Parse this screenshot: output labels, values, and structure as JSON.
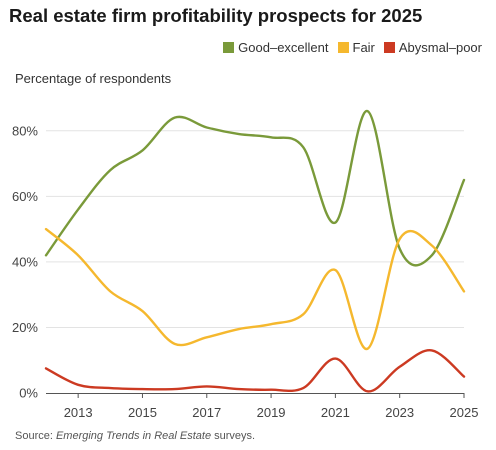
{
  "chart_data": {
    "type": "line",
    "title": "Real estate firm profitability prospects for 2025",
    "ylabel": "Percentage of respondents",
    "xlabel": "",
    "xlim": [
      2012,
      2025
    ],
    "ylim": [
      0,
      90
    ],
    "x_ticks": [
      "2013",
      "2015",
      "2017",
      "2019",
      "2021",
      "2023",
      "2025"
    ],
    "y_ticks": [
      "0%",
      "20%",
      "40%",
      "60%",
      "80%"
    ],
    "y_tick_values": [
      0,
      20,
      40,
      60,
      80
    ],
    "grid": true,
    "legend_position": "top-right",
    "x": [
      2012,
      2013,
      2014,
      2015,
      2016,
      2017,
      2018,
      2019,
      2020,
      2021,
      2022,
      2023,
      2024,
      2025
    ],
    "series": [
      {
        "name": "Good–excellent",
        "color": "#7a9a3a",
        "values": [
          42,
          56,
          68,
          74,
          84,
          81,
          79,
          78,
          75,
          52,
          86,
          44,
          42,
          65
        ]
      },
      {
        "name": "Fair",
        "color": "#f5b82e",
        "values": [
          50,
          42,
          31,
          25,
          15,
          17,
          19.5,
          21,
          24,
          37.5,
          13.5,
          47,
          45,
          31
        ]
      },
      {
        "name": "Abysmal–poor",
        "color": "#cc3a22",
        "values": [
          7.5,
          2.5,
          1.5,
          1.2,
          1.2,
          2,
          1.2,
          1,
          1.5,
          10.5,
          0.5,
          8,
          13,
          5
        ]
      }
    ]
  },
  "source": {
    "prefix": "Source: ",
    "publication": "Emerging Trends in Real Estate",
    "suffix": " surveys."
  },
  "colors": {
    "grid": "#e3e3e3",
    "axis": "#555555"
  }
}
